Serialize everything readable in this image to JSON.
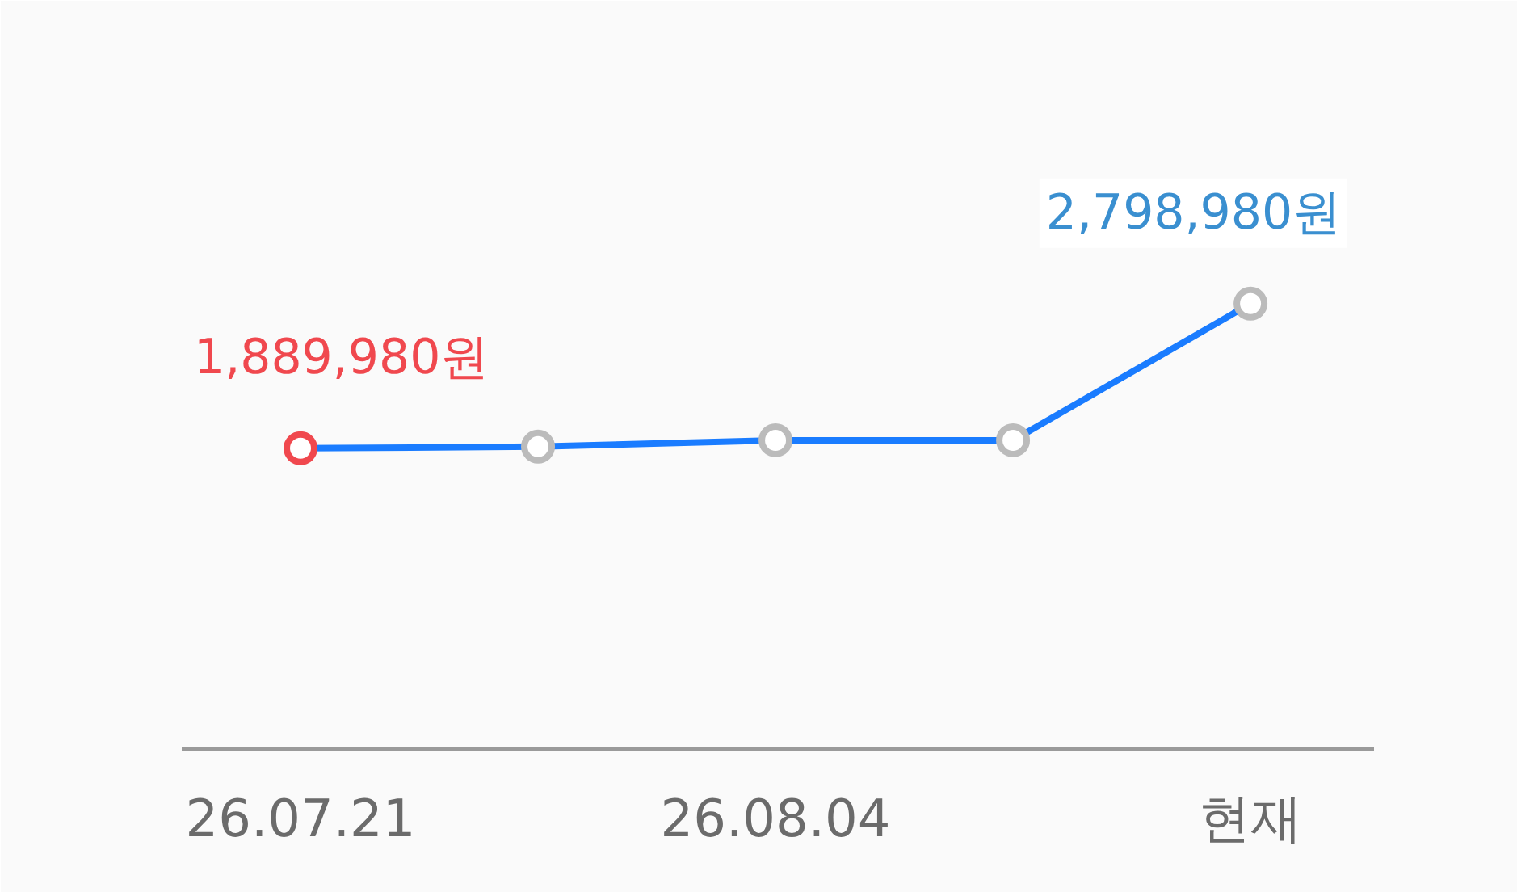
{
  "chart_data": {
    "type": "line",
    "categories": [
      "26.07.21",
      null,
      "26.08.04",
      null,
      "현재"
    ],
    "series": [
      {
        "color": "#1a7cff",
        "values": [
          1889980,
          1900000,
          1940000,
          1940000,
          2798980
        ],
        "colors": [
          "#f0484e",
          "#bbbbbb",
          "#bbbbbb",
          "#bbbbbb",
          "#bbbbbb"
        ],
        "value_labels": [
          "1,889,980원",
          null,
          null,
          null,
          "2,798,980원"
        ]
      }
    ],
    "marker": "circle",
    "tick_labels": "x"
  }
}
